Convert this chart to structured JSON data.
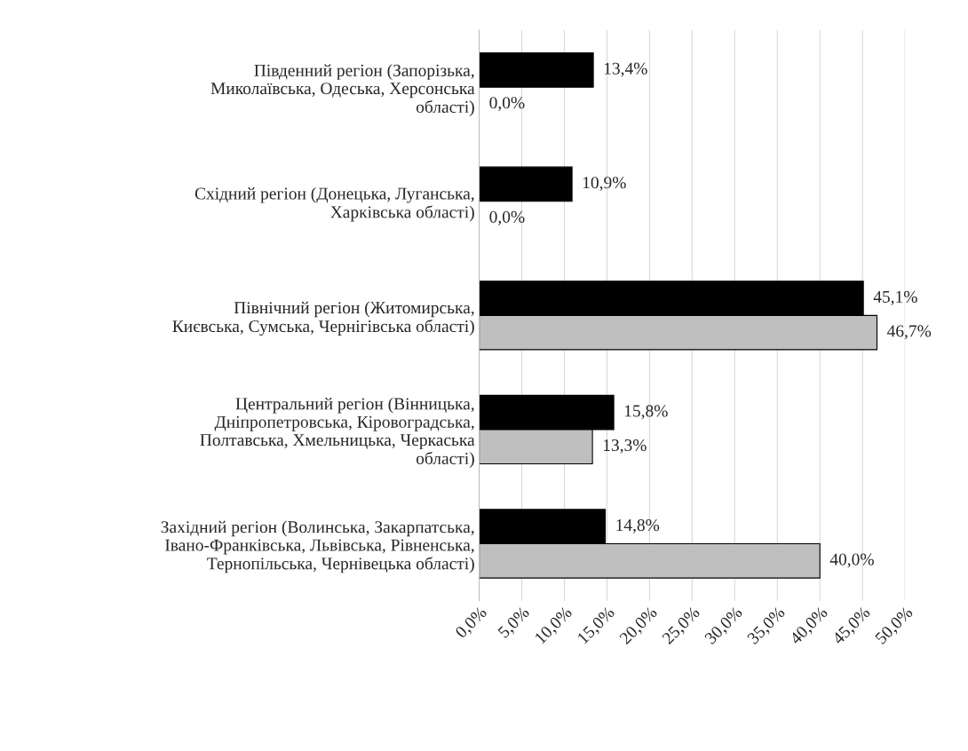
{
  "chart_data": {
    "type": "bar",
    "orientation": "horizontal",
    "categories": [
      "Південний регіон (Запорізька,\nМиколаївська, Одеська, Херсонська\nобласті)",
      "Східний регіон (Донецька, Луганська,\nХарківська області)",
      "Північний регіон (Житомирська,\nКиєвська, Сумська, Чернігівська області)",
      "Центральний регіон (Вінницька,\nДніпропетровська, Кіровоградська,\nПолтавська, Хмельницька, Черкаська\nобласті)",
      "Західний регіон (Волинська, Закарпатська,\nІвано-Франківська, Львівська, Рівненська,\nТернопільська, Чернівецька області)"
    ],
    "series": [
      {
        "color": "#000000",
        "values": [
          13.4,
          10.9,
          45.1,
          15.8,
          14.8
        ],
        "value_labels": [
          "13,4%",
          "10,9%",
          "45,1%",
          "15,8%",
          "14,8%"
        ]
      },
      {
        "color": "#bfbfbf",
        "values": [
          0.0,
          0.0,
          46.7,
          13.3,
          40.0
        ],
        "value_labels": [
          "0,0%",
          "0,0%",
          "46,7%",
          "13,3%",
          "40,0%"
        ]
      }
    ],
    "xlim": [
      0,
      50
    ],
    "xticks": [
      {
        "value": 0,
        "label": "0,0%"
      },
      {
        "value": 5,
        "label": "5,0%"
      },
      {
        "value": 10,
        "label": "10,0%"
      },
      {
        "value": 15,
        "label": "15,0%"
      },
      {
        "value": 20,
        "label": "20,0%"
      },
      {
        "value": 25,
        "label": "25,0%"
      },
      {
        "value": 30,
        "label": "30,0%"
      },
      {
        "value": 35,
        "label": "35,0%"
      },
      {
        "value": 40,
        "label": "40,0%"
      },
      {
        "value": 45,
        "label": "45,0%"
      },
      {
        "value": 50,
        "label": "50,0%"
      }
    ],
    "grid": "x",
    "legend": false
  }
}
